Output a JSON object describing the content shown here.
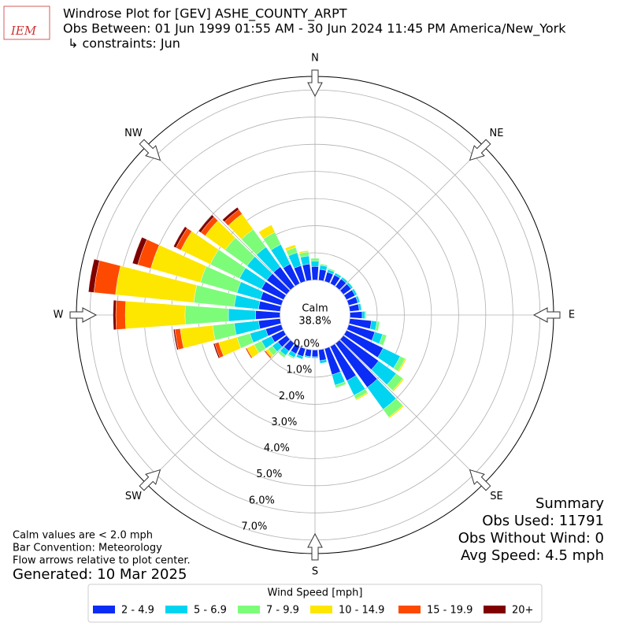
{
  "chart_data": {
    "type": "windrose",
    "title": "Windrose Plot for [GEV] ASHE_COUNTY_ARPT",
    "subtitle": "Obs Between: 01 Jun 1999 01:55 AM - 30 Jun 2024 11:45 PM America/New_York",
    "constraints": "↳ constraints: Jun",
    "logo": "IEM",
    "compass_labels": [
      "N",
      "NE",
      "E",
      "SE",
      "S",
      "SW",
      "W",
      "NW"
    ],
    "calm_label": "Calm",
    "calm_value": "38.8%",
    "categories": [
      null,
      null,
      null,
      null,
      null,
      null,
      null,
      null,
      null,
      null,
      null,
      null,
      null,
      null,
      null,
      null,
      null,
      null,
      null,
      null,
      null,
      null,
      null,
      null,
      null,
      null,
      null,
      null,
      null,
      null,
      null,
      null,
      null,
      null,
      null,
      null
    ],
    "rlim": [
      0,
      7.5
    ],
    "rticks": [
      {
        "value": 0,
        "label": "0.0%"
      },
      {
        "value": 1,
        "label": "1.0%"
      },
      {
        "value": 2,
        "label": "2.0%"
      },
      {
        "value": 3,
        "label": "3.0%"
      },
      {
        "value": 4,
        "label": "4.0%"
      },
      {
        "value": 5,
        "label": "5.0%"
      },
      {
        "value": 6,
        "label": "6.0%"
      },
      {
        "value": 7,
        "label": "7.0%"
      }
    ],
    "grid": true,
    "legend_title": "Wind Speed [mph]",
    "series": [
      {
        "name": "2 - 4.9",
        "color": "#0b2cf5",
        "values": [
          0.5,
          0.4,
          0.35,
          0.35,
          0.35,
          0.35,
          0.35,
          0.35,
          0.35,
          0.45,
          0.8,
          1.0,
          1.5,
          1.6,
          2.0,
          1.4,
          1.0,
          0.4,
          0.25,
          0.25,
          0.3,
          0.3,
          0.35,
          0.4,
          0.5,
          0.6,
          0.8,
          0.9,
          0.8,
          0.8,
          0.9,
          0.9,
          0.9,
          0.8,
          0.6,
          0.6
        ]
      },
      {
        "name": "5 - 6.9",
        "color": "#00d4f0",
        "values": [
          0.2,
          0.15,
          0.1,
          0.08,
          0.08,
          0.08,
          0.08,
          0.08,
          0.08,
          0.1,
          0.2,
          0.3,
          0.7,
          0.8,
          1.0,
          0.6,
          0.4,
          0.1,
          0.05,
          0.05,
          0.1,
          0.15,
          0.2,
          0.25,
          0.4,
          0.6,
          0.9,
          1.0,
          0.9,
          0.9,
          0.9,
          0.9,
          0.9,
          0.8,
          0.5,
          0.3
        ]
      },
      {
        "name": "7 - 9.9",
        "color": "#7dfc7a",
        "values": [
          0.1,
          0.05,
          0.05,
          0.02,
          0.02,
          0.02,
          0.02,
          0.02,
          0.02,
          0.05,
          0.1,
          0.15,
          0.2,
          0.3,
          0.35,
          0.15,
          0.1,
          0,
          0,
          0,
          0,
          0.05,
          0.1,
          0.2,
          0.3,
          0.5,
          0.8,
          1.6,
          1.5,
          1.4,
          1.2,
          1.0,
          0.8,
          0.5,
          0.2,
          0.15
        ]
      },
      {
        "name": "10 - 14.9",
        "color": "#fde600",
        "values": [
          0,
          0,
          0,
          0,
          0,
          0,
          0,
          0,
          0,
          0,
          0,
          0,
          0.05,
          0.05,
          0.05,
          0.05,
          0,
          0,
          0,
          0,
          0,
          0,
          0,
          0.1,
          0.3,
          0.7,
          1.2,
          2.2,
          2.9,
          1.9,
          1.2,
          0.9,
          0.7,
          0.3,
          0.1,
          0.05
        ]
      },
      {
        "name": "15 - 19.9",
        "color": "#fd4a00",
        "values": [
          0,
          0,
          0,
          0,
          0,
          0,
          0,
          0,
          0,
          0,
          0,
          0,
          0,
          0,
          0,
          0,
          0,
          0,
          0,
          0,
          0,
          0,
          0,
          0.05,
          0.05,
          0.15,
          0.2,
          0.35,
          0.8,
          0.5,
          0.2,
          0.2,
          0.2,
          0,
          0,
          0
        ]
      },
      {
        "name": "20+",
        "color": "#800000",
        "values": [
          0,
          0,
          0,
          0,
          0,
          0,
          0,
          0,
          0,
          0,
          0,
          0,
          0,
          0,
          0,
          0,
          0,
          0,
          0,
          0,
          0,
          0,
          0,
          0,
          0,
          0.05,
          0.05,
          0.1,
          0.2,
          0.2,
          0.1,
          0.1,
          0.1,
          0,
          0,
          0
        ]
      }
    ],
    "summary": [
      "Summary",
      "Obs Used: 11791",
      "Obs Without Wind: 0",
      "Avg Speed: 4.5 mph"
    ],
    "notes": [
      "Calm values are < 2.0 mph",
      "Bar Convention: Meteorology",
      "Flow arrows relative to plot center."
    ],
    "generated": "Generated: 10 Mar 2025"
  }
}
